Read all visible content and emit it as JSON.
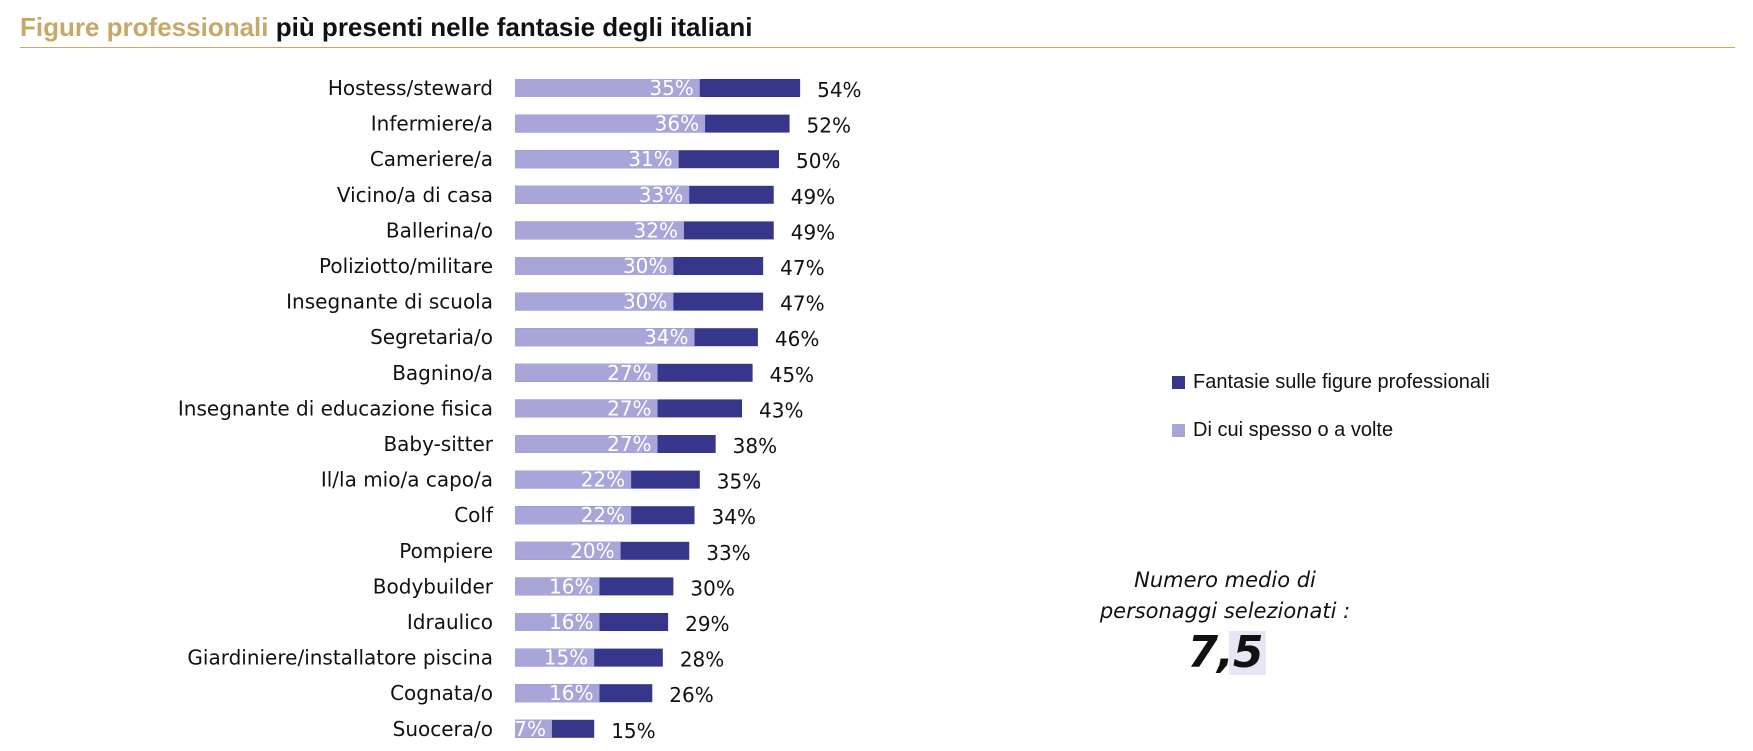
{
  "title": {
    "accent": "Figure professionali",
    "main": " più presenti nelle fantasie degli italiani"
  },
  "colors": {
    "accent": "#c7a868",
    "total_series": "#36378a",
    "often_series": "#a8a5d9",
    "text": "#111111"
  },
  "legend": {
    "total_label": "Fantasie sulle figure professionali",
    "often_label": "Di cui spesso o a volte"
  },
  "average": {
    "label_line1": "Numero medio di",
    "label_line2": "personaggi selezionati :",
    "value": "7,5"
  },
  "chart_data": {
    "type": "bar",
    "orientation": "horizontal",
    "stacked": "overlay",
    "xlim": [
      0,
      60
    ],
    "grid": false,
    "legend_position": "right",
    "categories": [
      "Hostess/steward",
      "Infermiere/a",
      "Cameriere/a",
      "Vicino/a di casa",
      "Ballerina/o",
      "Poliziotto/militare",
      "Insegnante di scuola",
      "Segretaria/o",
      "Bagnino/a",
      "Insegnante di educazione fisica",
      "Baby-sitter",
      "Il/la mio/a capo/a",
      "Colf",
      "Pompiere",
      "Bodybuilder",
      "Idraulico",
      "Giardiniere/installatore piscina",
      "Cognata/o",
      "Suocera/o"
    ],
    "series": [
      {
        "name": "Fantasie sulle figure professionali",
        "values": [
          54,
          52,
          50,
          49,
          49,
          47,
          47,
          46,
          45,
          43,
          38,
          35,
          34,
          33,
          30,
          29,
          28,
          26,
          15
        ],
        "labels": [
          "54%",
          "52%",
          "50%",
          "49%",
          "49%",
          "47%",
          "47%",
          "46%",
          "45%",
          "43%",
          "38%",
          "35%",
          "34%",
          "33%",
          "30%",
          "29%",
          "28%",
          "26%",
          "15%"
        ]
      },
      {
        "name": "Di cui spesso o a volte",
        "values": [
          35,
          36,
          31,
          33,
          32,
          30,
          30,
          34,
          27,
          27,
          27,
          22,
          22,
          20,
          16,
          16,
          15,
          16,
          7
        ],
        "labels": [
          "35%",
          "36%",
          "31%",
          "33%",
          "32%",
          "30%",
          "30%",
          "34%",
          "27%",
          "27%",
          "27%",
          "22%",
          "22%",
          "20%",
          "16%",
          "16%",
          "15%",
          "16%",
          "7%"
        ]
      }
    ]
  }
}
